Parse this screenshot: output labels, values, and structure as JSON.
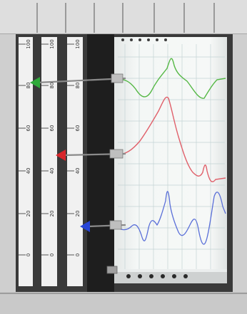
{
  "recorder": {
    "scales": [
      {
        "id": "scale-1",
        "ticks": [
          "0",
          "20",
          "40",
          "60",
          "80",
          "100"
        ],
        "pointer_color": "#2faa3a"
      },
      {
        "id": "scale-2",
        "ticks": [
          "0",
          "20",
          "40",
          "60",
          "80",
          "100"
        ],
        "pointer_color": "#d8262b"
      },
      {
        "id": "scale-3",
        "ticks": [
          "0",
          "20",
          "40",
          "60",
          "80",
          "100"
        ],
        "pointer_color": "#2946d6"
      }
    ],
    "traces": [
      {
        "id": "trace-green",
        "color": "#55b845"
      },
      {
        "id": "trace-red",
        "color": "#e0606a"
      },
      {
        "id": "trace-blue",
        "color": "#5a6fd8"
      }
    ],
    "colors": {
      "frame": "#d5d5d5",
      "frame_dark": "#8f8f8f",
      "chart_paper": "#f2f5f4",
      "grid": "#c8d6d8"
    }
  }
}
